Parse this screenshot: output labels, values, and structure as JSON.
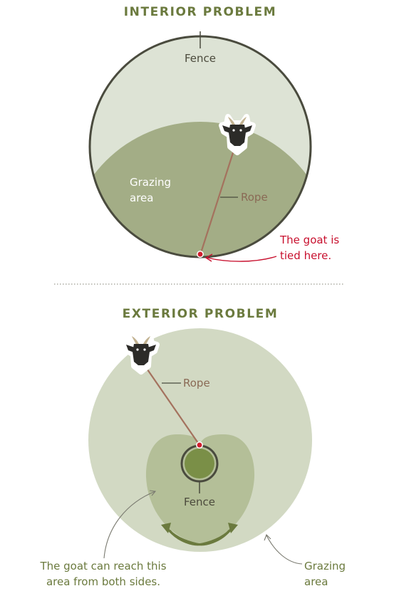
{
  "interior": {
    "title": "INTERIOR PROBLEM",
    "fence_label": "Fence",
    "grazing_label_line1": "Grazing",
    "grazing_label_line2": "area",
    "rope_label": "Rope",
    "tied_label_line1": "The goat is",
    "tied_label_line2": "tied here."
  },
  "exterior": {
    "title": "EXTERIOR PROBLEM",
    "rope_label": "Rope",
    "fence_label": "Fence",
    "both_sides_line1": "The goat can reach this",
    "both_sides_line2": "area from both sides.",
    "grazing_label_line1": "Grazing",
    "grazing_label_line2": "area"
  },
  "colors": {
    "field_light": "#dde3d5",
    "grazing": "#a3ad86",
    "outer_light": "#d2d9c3",
    "inner_overlap": "#b4bf98",
    "fence_disc": "#7a8f47",
    "rope": "#a4725e",
    "tie_point": "#d01f2e",
    "title": "#6b7a3e"
  },
  "icons": {
    "goat": "goat-head-icon"
  }
}
